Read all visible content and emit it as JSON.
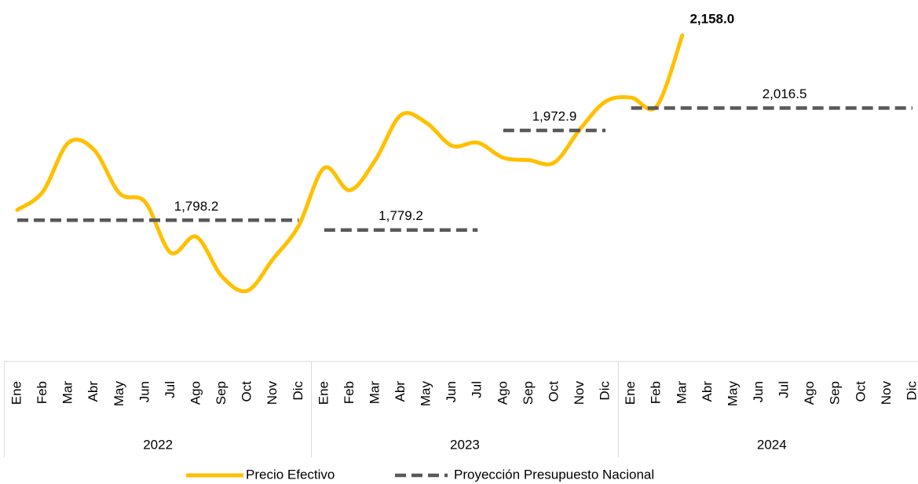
{
  "chart_data": {
    "type": "line",
    "categories": [
      "Ene",
      "Feb",
      "Mar",
      "Abr",
      "May",
      "Jun",
      "Jul",
      "Ago",
      "Sep",
      "Oct",
      "Nov",
      "Dic",
      "Ene",
      "Feb",
      "Mar",
      "Abr",
      "May",
      "Jun",
      "Jul",
      "Ago",
      "Sep",
      "Oct",
      "Nov",
      "Dic",
      "Ene",
      "Feb",
      "Mar",
      "Abr",
      "May",
      "Jun",
      "Jul",
      "Ago",
      "Sep",
      "Oct",
      "Nov",
      "Dic"
    ],
    "category_groups": [
      "2022",
      "2023",
      "2024"
    ],
    "series": [
      {
        "name": "Precio Efectivo",
        "color": "#FFC000",
        "style": "solid",
        "values": [
          1818.2,
          1853.6,
          1949.1,
          1935.3,
          1850.6,
          1833.6,
          1735.1,
          1765.9,
          1688.7,
          1661.0,
          1722.6,
          1787.4,
          1899.8,
          1856.7,
          1915.2,
          2003.0,
          1987.6,
          1943.0,
          1949.1,
          1919.9,
          1915.2,
          1910.6,
          1975.3,
          2029.2,
          2036.9,
          2020.0,
          2158.0,
          null,
          null,
          null,
          null,
          null,
          null,
          null,
          null,
          null
        ],
        "value_labels": [
          null,
          null,
          null,
          null,
          null,
          null,
          null,
          null,
          null,
          null,
          null,
          null,
          null,
          null,
          null,
          null,
          null,
          null,
          null,
          null,
          null,
          null,
          null,
          null,
          null,
          null,
          "2,158.0",
          null,
          null,
          null,
          null,
          null,
          null,
          null,
          null,
          null
        ]
      },
      {
        "name": "Proyección Presupuesto Nacional",
        "color": "#595959",
        "style": "dashed",
        "values": [
          1798.2,
          1798.2,
          1798.2,
          1798.2,
          1798.2,
          1798.2,
          1798.2,
          1798.2,
          1798.2,
          1798.2,
          1798.2,
          1798.2,
          1779.2,
          1779.2,
          1779.2,
          1779.2,
          1779.2,
          1779.2,
          1779.2,
          1972.9,
          1972.9,
          1972.9,
          1972.9,
          1972.9,
          2016.5,
          2016.5,
          2016.5,
          2016.5,
          2016.5,
          2016.5,
          2016.5,
          2016.5,
          2016.5,
          2016.5,
          2016.5,
          2016.5
        ],
        "value_labels": [
          null,
          null,
          null,
          null,
          null,
          null,
          null,
          "1,798.2",
          null,
          null,
          null,
          null,
          null,
          null,
          null,
          "1,779.2",
          null,
          null,
          null,
          null,
          null,
          "1,972.9",
          null,
          null,
          null,
          null,
          null,
          null,
          null,
          null,
          "2,016.5",
          null,
          null,
          null,
          null,
          null
        ]
      }
    ]
  }
}
